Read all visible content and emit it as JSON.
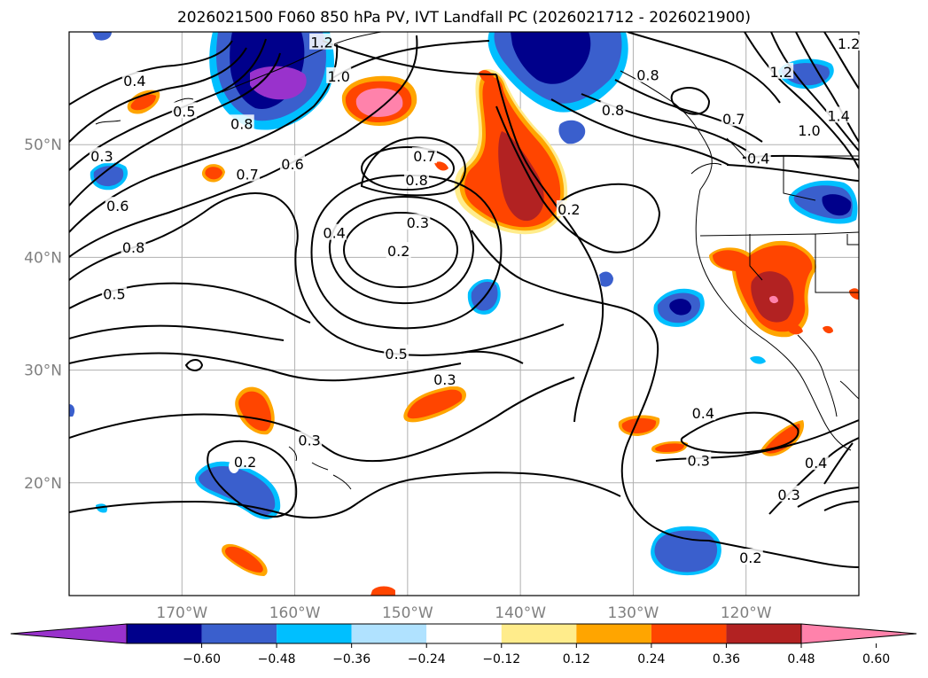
{
  "title": "2026021500 F060 850 hPa PV, IVT Landfall PC (2026021712 - 2026021900)",
  "map": {
    "lon_range": [
      -180,
      -110
    ],
    "lat_range": [
      10,
      60
    ],
    "lat_labels": [
      "50°N",
      "40°N",
      "30°N",
      "20°N"
    ],
    "lon_labels": [
      "170°W",
      "160°W",
      "150°W",
      "140°W",
      "130°W",
      "120°W"
    ],
    "grid": true
  },
  "colorbar": {
    "colors": [
      "#9932cc",
      "#00008b",
      "#3a5fcd",
      "#00bfff",
      "#b0e2ff",
      "#ffffff",
      "#ffec8b",
      "#ffa500",
      "#ff4500",
      "#b22222",
      "#ff82ab"
    ],
    "ticks": [
      "−0.60",
      "−0.48",
      "−0.36",
      "−0.24",
      "−0.12",
      "0.12",
      "0.24",
      "0.36",
      "0.48",
      "0.60"
    ],
    "extend": "both"
  },
  "pv_contours": {
    "color": "#000000",
    "labels": [
      {
        "text": "0.4",
        "lon": -174.2,
        "lat": 55.6
      },
      {
        "text": "0.5",
        "lon": -169.8,
        "lat": 52.9
      },
      {
        "text": "0.3",
        "lon": -177.1,
        "lat": 48.9
      },
      {
        "text": "0.8",
        "lon": -164.7,
        "lat": 51.8
      },
      {
        "text": "0.7",
        "lon": -164.2,
        "lat": 47.3
      },
      {
        "text": "0.6",
        "lon": -160.2,
        "lat": 48.2
      },
      {
        "text": "0.6",
        "lon": -175.7,
        "lat": 44.5
      },
      {
        "text": "0.8",
        "lon": -174.3,
        "lat": 40.8
      },
      {
        "text": "0.5",
        "lon": -176.0,
        "lat": 36.7
      },
      {
        "text": "1.2",
        "lon": -157.6,
        "lat": 59.0
      },
      {
        "text": "1.0",
        "lon": -156.1,
        "lat": 56.0
      },
      {
        "text": "0.7",
        "lon": -148.5,
        "lat": 48.9
      },
      {
        "text": "0.8",
        "lon": -149.2,
        "lat": 46.8
      },
      {
        "text": "0.4",
        "lon": -156.5,
        "lat": 42.1
      },
      {
        "text": "0.3",
        "lon": -149.1,
        "lat": 43.0
      },
      {
        "text": "0.2",
        "lon": -150.8,
        "lat": 40.5
      },
      {
        "text": "0.2",
        "lon": -135.7,
        "lat": 44.2
      },
      {
        "text": "0.5",
        "lon": -151.0,
        "lat": 31.4
      },
      {
        "text": "0.3",
        "lon": -146.7,
        "lat": 29.1
      },
      {
        "text": "0.3",
        "lon": -158.7,
        "lat": 23.7
      },
      {
        "text": "0.2",
        "lon": -164.4,
        "lat": 21.8
      },
      {
        "text": "0.8",
        "lon": -128.7,
        "lat": 56.1
      },
      {
        "text": "0.8",
        "lon": -131.8,
        "lat": 53.0
      },
      {
        "text": "0.7",
        "lon": -121.1,
        "lat": 52.2
      },
      {
        "text": "1.2",
        "lon": -116.9,
        "lat": 56.4
      },
      {
        "text": "1.0",
        "lon": -114.4,
        "lat": 51.2
      },
      {
        "text": "1.4",
        "lon": -111.8,
        "lat": 52.5
      },
      {
        "text": "0.4",
        "lon": -118.9,
        "lat": 48.7
      },
      {
        "text": "1.2",
        "lon": -110.9,
        "lat": 58.9
      },
      {
        "text": "0.4",
        "lon": -123.8,
        "lat": 26.1
      },
      {
        "text": "0.3",
        "lon": -124.2,
        "lat": 21.9
      },
      {
        "text": "0.4",
        "lon": -113.8,
        "lat": 21.7
      },
      {
        "text": "0.3",
        "lon": -116.2,
        "lat": 18.9
      },
      {
        "text": "0.2",
        "lon": -119.6,
        "lat": 13.3
      }
    ]
  }
}
